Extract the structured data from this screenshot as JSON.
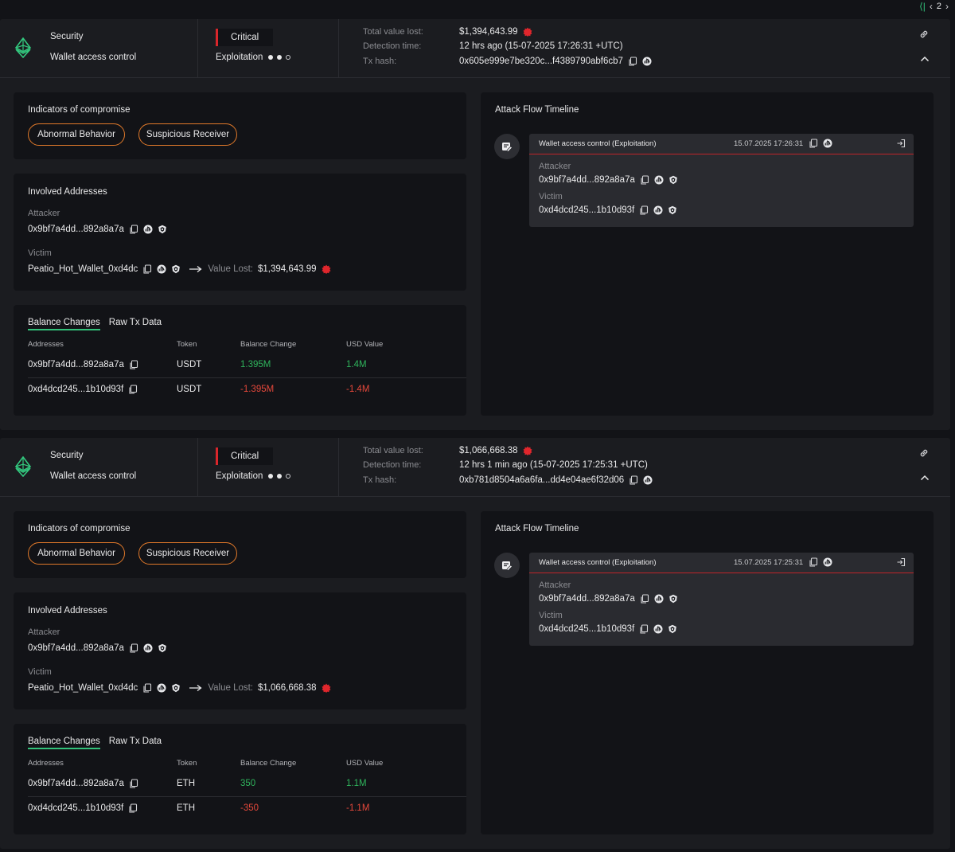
{
  "pagination": {
    "current_page": "2"
  },
  "labels": {
    "total_value_lost": "Total value lost:",
    "detection_time": "Detection time:",
    "tx_hash": "Tx hash:",
    "indicators_title": "Indicators of compromise",
    "involved_title": "Involved Addresses",
    "attacker": "Attacker",
    "victim": "Victim",
    "value_lost": "Value Lost:",
    "tab_balance": "Balance Changes",
    "tab_raw": "Raw Tx Data",
    "col_addresses": "Addresses",
    "col_token": "Token",
    "col_balance_change": "Balance Change",
    "col_usd_value": "USD Value",
    "timeline_title": "Attack Flow Timeline"
  },
  "colors": {
    "accent_green": "#32c27a",
    "critical_red": "#d9262b",
    "pill_orange": "#e0792a",
    "positive": "#2fb45c",
    "negative": "#e5483b"
  },
  "alerts": [
    {
      "category": "Security",
      "subcategory": "Wallet access control",
      "severity": "Critical",
      "phase": "Exploitation",
      "total_value_lost": "$1,394,643.99",
      "detection_time": "12 hrs ago (15-07-2025 17:26:31 +UTC)",
      "tx_hash": "0x605e999e7be320c...f4389790abf6cb7",
      "indicators": [
        "Abnormal Behavior",
        "Suspicious Receiver"
      ],
      "attacker": "0x9bf7a4dd...892a8a7a",
      "victim": "Peatio_Hot_Wallet_0xd4dc",
      "value_lost": "$1,394,643.99",
      "balance_rows": [
        {
          "address": "0x9bf7a4dd...892a8a7a",
          "token": "USDT",
          "change": "1.395M",
          "usd": "1.4M"
        },
        {
          "address": "0xd4dcd245...1b10d93f",
          "token": "USDT",
          "change": "-1.395M",
          "usd": "-1.4M"
        }
      ],
      "timeline": {
        "title": "Wallet access control  (Exploitation)",
        "time": "15.07.2025 17:26:31",
        "attacker": "0x9bf7a4dd...892a8a7a",
        "victim": "0xd4dcd245...1b10d93f"
      }
    },
    {
      "category": "Security",
      "subcategory": "Wallet access control",
      "severity": "Critical",
      "phase": "Exploitation",
      "total_value_lost": "$1,066,668.38",
      "detection_time": "12 hrs 1 min ago (15-07-2025 17:25:31 +UTC)",
      "tx_hash": "0xb781d8504a6a6fa...dd4e04ae6f32d06",
      "indicators": [
        "Abnormal Behavior",
        "Suspicious Receiver"
      ],
      "attacker": "0x9bf7a4dd...892a8a7a",
      "victim": "Peatio_Hot_Wallet_0xd4dc",
      "value_lost": "$1,066,668.38",
      "balance_rows": [
        {
          "address": "0x9bf7a4dd...892a8a7a",
          "token": "ETH",
          "change": "350",
          "usd": "1.1M"
        },
        {
          "address": "0xd4dcd245...1b10d93f",
          "token": "ETH",
          "change": "-350",
          "usd": "-1.1M"
        }
      ],
      "timeline": {
        "title": "Wallet access control  (Exploitation)",
        "time": "15.07.2025 17:25:31",
        "attacker": "0x9bf7a4dd...892a8a7a",
        "victim": "0xd4dcd245...1b10d93f"
      }
    }
  ]
}
